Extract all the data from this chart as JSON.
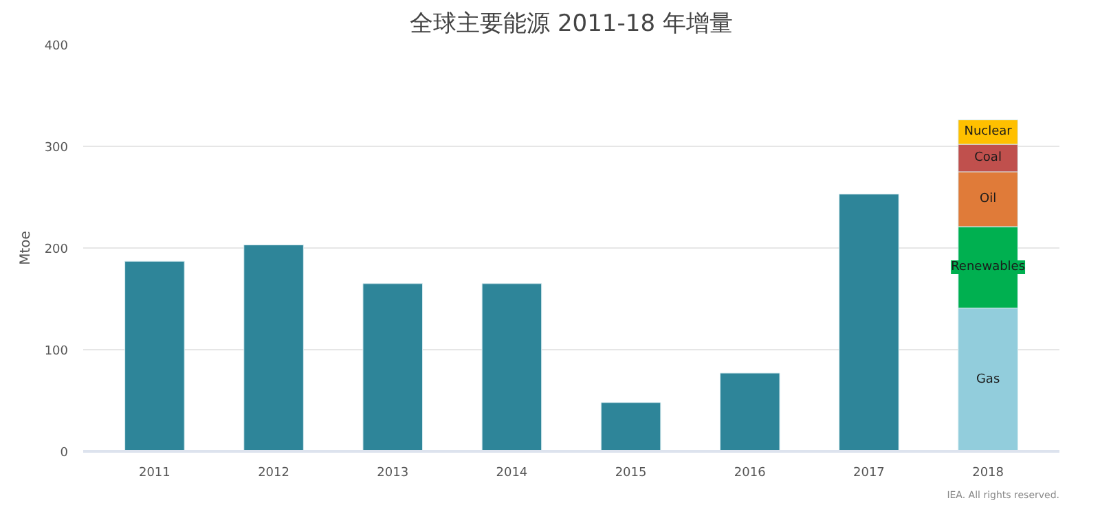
{
  "chart_data": {
    "type": "bar",
    "title": "全球主要能源 2011-18 年增量",
    "ylabel": "Mtoe",
    "categories": [
      "2011",
      "2012",
      "2013",
      "2014",
      "2015",
      "2016",
      "2017",
      "2018"
    ],
    "stacked": true,
    "series": [
      {
        "color": "#2e8599",
        "values": [
          187,
          203,
          165,
          165,
          48,
          77,
          253,
          null
        ]
      },
      {
        "name": "Gas",
        "color": "#92cddc",
        "values": [
          null,
          null,
          null,
          null,
          null,
          null,
          null,
          141
        ]
      },
      {
        "name": "Renewables",
        "color": "#00b050",
        "values": [
          null,
          null,
          null,
          null,
          null,
          null,
          null,
          80
        ]
      },
      {
        "name": "Oil",
        "color": "#e07b39",
        "values": [
          null,
          null,
          null,
          null,
          null,
          null,
          null,
          54
        ]
      },
      {
        "name": "Coal",
        "color": "#c0504d",
        "values": [
          null,
          null,
          null,
          null,
          null,
          null,
          null,
          27
        ]
      },
      {
        "name": "Nuclear",
        "color": "#ffc000",
        "values": [
          null,
          null,
          null,
          null,
          null,
          null,
          null,
          24
        ]
      }
    ],
    "ylim": [
      0,
      400
    ],
    "yticks": [
      0,
      100,
      200,
      300,
      400
    ],
    "grid": "y",
    "annotations": [
      "IEA. All rights reserved."
    ]
  }
}
